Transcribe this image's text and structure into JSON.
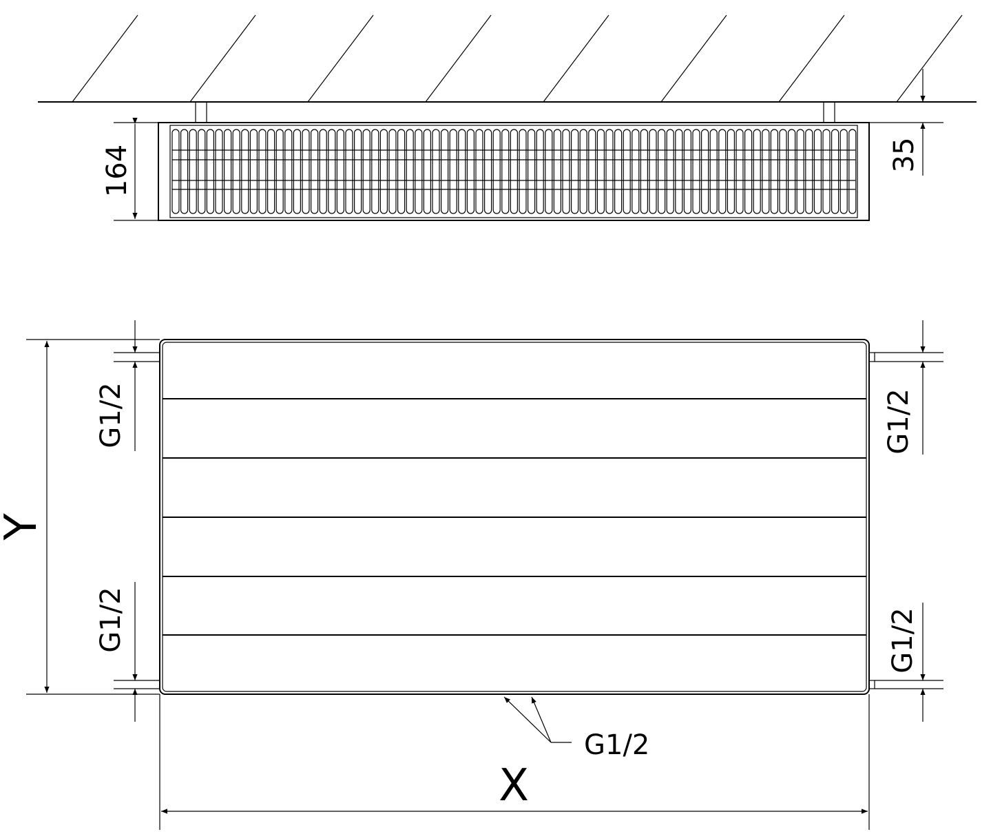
{
  "top_view": {
    "depth_label": "164",
    "wall_gap_label": "35"
  },
  "front_view": {
    "height_label": "Y",
    "width_label": "X",
    "left_top_connection": "G1/2",
    "left_bottom_connection": "G1/2",
    "right_top_connection": "G1/2",
    "right_bottom_connection": "G1/2",
    "bottom_connection": "G1/2"
  },
  "colors": {
    "line": "#000000",
    "background": "#ffffff"
  }
}
